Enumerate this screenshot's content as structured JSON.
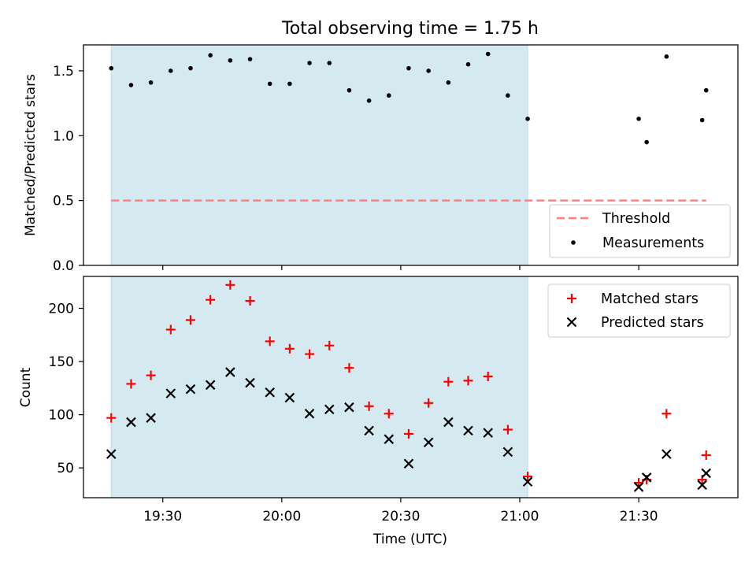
{
  "chart_data": {
    "type": "scatter",
    "title": "Total observing time = 1.75 h",
    "shaded_region": {
      "start": "19:17",
      "end": "21:02"
    },
    "x_axis": {
      "label": "Time (UTC)",
      "range": [
        "19:10",
        "21:55"
      ],
      "ticks": [
        "19:30",
        "20:00",
        "20:30",
        "21:00",
        "21:30"
      ]
    },
    "top_panel": {
      "ylabel": "Matched/Predicted stars",
      "ylim": [
        0.0,
        1.7
      ],
      "yticks": [
        "0.0",
        "0.5",
        "1.0",
        "1.5"
      ],
      "threshold": {
        "name": "Threshold",
        "value": 0.5,
        "color": "#ff7f7f"
      },
      "legend": {
        "position": "lower right"
      },
      "series": [
        {
          "name": "Measurements",
          "color": "#000000",
          "points": [
            {
              "x": "19:17",
              "y": 1.52
            },
            {
              "x": "19:22",
              "y": 1.39
            },
            {
              "x": "19:27",
              "y": 1.41
            },
            {
              "x": "19:32",
              "y": 1.5
            },
            {
              "x": "19:37",
              "y": 1.52
            },
            {
              "x": "19:42",
              "y": 1.62
            },
            {
              "x": "19:47",
              "y": 1.58
            },
            {
              "x": "19:52",
              "y": 1.59
            },
            {
              "x": "19:57",
              "y": 1.4
            },
            {
              "x": "20:02",
              "y": 1.4
            },
            {
              "x": "20:07",
              "y": 1.56
            },
            {
              "x": "20:12",
              "y": 1.56
            },
            {
              "x": "20:17",
              "y": 1.35
            },
            {
              "x": "20:22",
              "y": 1.27
            },
            {
              "x": "20:27",
              "y": 1.31
            },
            {
              "x": "20:32",
              "y": 1.52
            },
            {
              "x": "20:37",
              "y": 1.5
            },
            {
              "x": "20:42",
              "y": 1.41
            },
            {
              "x": "20:47",
              "y": 1.55
            },
            {
              "x": "20:52",
              "y": 1.63
            },
            {
              "x": "20:57",
              "y": 1.31
            },
            {
              "x": "21:02",
              "y": 1.13
            },
            {
              "x": "21:30",
              "y": 1.13
            },
            {
              "x": "21:32",
              "y": 0.95
            },
            {
              "x": "21:37",
              "y": 1.61
            },
            {
              "x": "21:46",
              "y": 1.12
            },
            {
              "x": "21:47",
              "y": 1.35
            }
          ]
        }
      ]
    },
    "bottom_panel": {
      "ylabel": "Count",
      "ylim": [
        22,
        230
      ],
      "yticks": [
        "50",
        "100",
        "150",
        "200"
      ],
      "legend": {
        "position": "upper right"
      },
      "series": [
        {
          "name": "Matched stars",
          "marker": "plus",
          "color": "#ff0000",
          "points": [
            {
              "x": "19:17",
              "y": 97
            },
            {
              "x": "19:22",
              "y": 129
            },
            {
              "x": "19:27",
              "y": 137
            },
            {
              "x": "19:32",
              "y": 180
            },
            {
              "x": "19:37",
              "y": 189
            },
            {
              "x": "19:42",
              "y": 208
            },
            {
              "x": "19:47",
              "y": 222
            },
            {
              "x": "19:52",
              "y": 207
            },
            {
              "x": "19:57",
              "y": 169
            },
            {
              "x": "20:02",
              "y": 162
            },
            {
              "x": "20:07",
              "y": 157
            },
            {
              "x": "20:12",
              "y": 165
            },
            {
              "x": "20:17",
              "y": 144
            },
            {
              "x": "20:22",
              "y": 108
            },
            {
              "x": "20:27",
              "y": 101
            },
            {
              "x": "20:32",
              "y": 82
            },
            {
              "x": "20:37",
              "y": 111
            },
            {
              "x": "20:42",
              "y": 131
            },
            {
              "x": "20:47",
              "y": 132
            },
            {
              "x": "20:52",
              "y": 136
            },
            {
              "x": "20:57",
              "y": 86
            },
            {
              "x": "21:02",
              "y": 42
            },
            {
              "x": "21:30",
              "y": 36
            },
            {
              "x": "21:32",
              "y": 39
            },
            {
              "x": "21:37",
              "y": 101
            },
            {
              "x": "21:46",
              "y": 39
            },
            {
              "x": "21:47",
              "y": 62
            }
          ]
        },
        {
          "name": "Predicted stars",
          "marker": "x",
          "color": "#000000",
          "points": [
            {
              "x": "19:17",
              "y": 63
            },
            {
              "x": "19:22",
              "y": 93
            },
            {
              "x": "19:27",
              "y": 97
            },
            {
              "x": "19:32",
              "y": 120
            },
            {
              "x": "19:37",
              "y": 124
            },
            {
              "x": "19:42",
              "y": 128
            },
            {
              "x": "19:47",
              "y": 140
            },
            {
              "x": "19:52",
              "y": 130
            },
            {
              "x": "19:57",
              "y": 121
            },
            {
              "x": "20:02",
              "y": 116
            },
            {
              "x": "20:07",
              "y": 101
            },
            {
              "x": "20:12",
              "y": 105
            },
            {
              "x": "20:17",
              "y": 107
            },
            {
              "x": "20:22",
              "y": 85
            },
            {
              "x": "20:27",
              "y": 77
            },
            {
              "x": "20:32",
              "y": 54
            },
            {
              "x": "20:37",
              "y": 74
            },
            {
              "x": "20:42",
              "y": 93
            },
            {
              "x": "20:47",
              "y": 85
            },
            {
              "x": "20:52",
              "y": 83
            },
            {
              "x": "20:57",
              "y": 65
            },
            {
              "x": "21:02",
              "y": 37
            },
            {
              "x": "21:30",
              "y": 32
            },
            {
              "x": "21:32",
              "y": 41
            },
            {
              "x": "21:37",
              "y": 63
            },
            {
              "x": "21:46",
              "y": 34
            },
            {
              "x": "21:47",
              "y": 45
            }
          ]
        }
      ]
    },
    "colors": {
      "shade": "#d4eaf0",
      "shade_edge": "#b8dde8"
    }
  }
}
